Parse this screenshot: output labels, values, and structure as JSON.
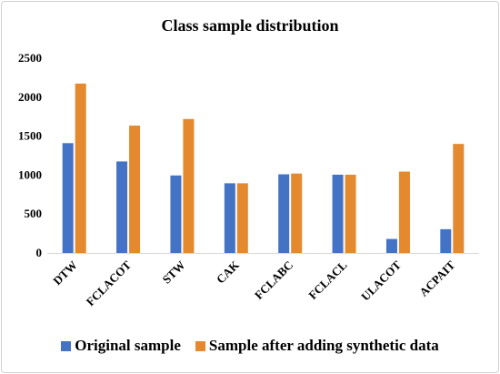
{
  "chart_data": {
    "type": "bar",
    "title": "Class sample distribution",
    "xlabel": "",
    "ylabel": "",
    "ylim": [
      0,
      2500
    ],
    "yticks": [
      0,
      500,
      1000,
      1500,
      2000,
      2500
    ],
    "grid": false,
    "legend_position": "bottom",
    "categories": [
      "DTW",
      "FCLACOT",
      "STW",
      "CAK",
      "FCLABC",
      "FCLACL",
      "ULACOT",
      "ACPAIT"
    ],
    "series": [
      {
        "name": "Original sample",
        "color": "#4472c4",
        "values": [
          1410,
          1175,
          995,
          895,
          1010,
          1005,
          180,
          305
        ]
      },
      {
        "name": "Sample after adding synthetic data",
        "color": "#e4892e",
        "values": [
          2175,
          1635,
          1720,
          895,
          1020,
          1005,
          1045,
          1400
        ]
      }
    ]
  }
}
